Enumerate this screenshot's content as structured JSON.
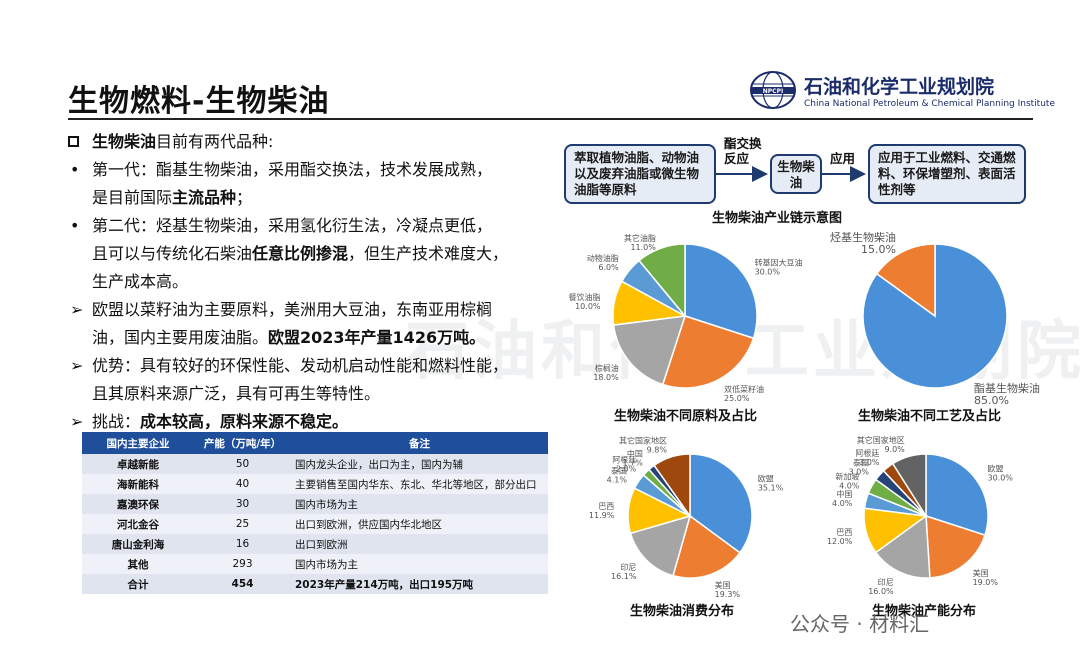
{
  "title": "生物燃料-生物柴油",
  "logo": {
    "cn": "石油和化学工业规划院",
    "en": "China National Petroleum & Chemical Planning Institute",
    "badge": "NPCPI"
  },
  "left": {
    "intro": {
      "bold": "生物柴油",
      "rest": "目前有两代品种:"
    },
    "gen1": {
      "a": "第一代：酯基生物柴油，采用酯交换法，技术发展成熟，",
      "b": "是目前国际",
      "bold": "主流品种",
      "c": "；"
    },
    "gen2": {
      "a": "第二代：烃基生物柴油，采用氢化衍生法，冷凝点更低，",
      "b": "且可以与传统化石柴油",
      "bold": "任意比例掺混",
      "c": "，但生产技术难度大，",
      "d": "生产成本高。"
    },
    "eu": {
      "a": "欧盟以菜籽油为主要原料，美洲用大豆油，东南亚用棕榈",
      "b": "油，国内主要用废油脂。",
      "bold": "欧盟2023年产量1426万吨。"
    },
    "adv": {
      "a": "优势：具有较好的环保性能、发动机启动性能和燃料性能，",
      "b": "且其原料来源广泛，具有可再生等特性。"
    },
    "chal": {
      "a": "挑战：",
      "bold": "成本较高，原料来源不稳定。"
    }
  },
  "table": {
    "headers": [
      "国内主要企业",
      "产能（万吨/年）",
      "备注"
    ],
    "rows": [
      [
        "卓越新能",
        "50",
        "国内龙头企业，出口为主，国内为辅"
      ],
      [
        "海新能科",
        "40",
        "主要销售至国内华东、东北、华北等地区，部分出口"
      ],
      [
        "嘉澳环保",
        "30",
        "国内市场为主"
      ],
      [
        "河北金谷",
        "25",
        "出口到欧洲，供应国内华北地区"
      ],
      [
        "唐山金利海",
        "16",
        "出口到欧洲"
      ],
      [
        "其他",
        "293",
        "国内市场为主"
      ],
      [
        "合计",
        "454",
        "2023年产量214万吨，出口195万吨"
      ]
    ]
  },
  "flow": {
    "box1": "萃取植物油脂、动物油以及废弃油脂或微生物油脂等原料",
    "arrow1": "酯交换反应",
    "box2": "生物柴油",
    "arrow2": "应用",
    "box3": "应用于工业燃料、交通燃料、环保增塑剂、表面活性剂等",
    "caption": "生物柴油产业链示意图"
  },
  "captions": {
    "c1": "生物柴油不同原料及占比",
    "c2": "生物柴油不同工艺及占比",
    "c3": "生物柴油消费分布",
    "c4": "生物柴油产能分布"
  },
  "chart_data": [
    {
      "type": "pie",
      "title": "生物柴油不同原料及占比",
      "labels": [
        "转基因大豆油",
        "双低菜籽油",
        "棕榈油",
        "餐饮油脂",
        "动物油脂",
        "其它油脂"
      ],
      "values": [
        30.0,
        25.0,
        18.0,
        10.0,
        6.0,
        11.0
      ],
      "display": [
        "30.0%",
        "25.0%",
        "18.0%",
        "10.0%",
        "6.0%",
        "11.0%"
      ],
      "colors": [
        "#4a90d9",
        "#ed7d31",
        "#a5a5a5",
        "#ffc000",
        "#5b9bd5",
        "#70ad47"
      ]
    },
    {
      "type": "pie",
      "title": "生物柴油不同工艺及占比",
      "labels": [
        "酯基生物柴油",
        "烃基生物柴油"
      ],
      "values": [
        85.0,
        15.0
      ],
      "display": [
        "85.0%",
        "15.0%"
      ],
      "colors": [
        "#4a90d9",
        "#ed7d31"
      ]
    },
    {
      "type": "pie",
      "title": "生物柴油消费分布",
      "labels": [
        "欧盟",
        "美国",
        "印尼",
        "巴西",
        "泰国",
        "阿根廷",
        "中国",
        "其它国家地区"
      ],
      "values": [
        35.1,
        19.3,
        16.1,
        11.9,
        4.1,
        2.0,
        1.7,
        9.8
      ],
      "display": [
        "35.1%",
        "19.3%",
        "16.1%",
        "11.9%",
        "4.1%",
        "2.0%",
        "1.7%",
        "9.8%"
      ],
      "colors": [
        "#4a90d9",
        "#ed7d31",
        "#a5a5a5",
        "#ffc000",
        "#5b9bd5",
        "#70ad47",
        "#264478",
        "#9e480e"
      ]
    },
    {
      "type": "pie",
      "title": "生物柴油产能分布",
      "labels": [
        "欧盟",
        "美国",
        "印尼",
        "巴西",
        "中国",
        "新加坡",
        "泰国",
        "阿根廷",
        "其它国家地区"
      ],
      "values": [
        30.0,
        19.0,
        16.0,
        12.0,
        4.0,
        4.0,
        3.0,
        3.0,
        9.0
      ],
      "display": [
        "30.0%",
        "19.0%",
        "16.0%",
        "12.0%",
        "4.0%",
        "4.0%",
        "3.0%",
        "3.0%",
        "9.0%"
      ],
      "colors": [
        "#4a90d9",
        "#ed7d31",
        "#a5a5a5",
        "#ffc000",
        "#5b9bd5",
        "#70ad47",
        "#264478",
        "#9e480e",
        "#636363"
      ]
    }
  ],
  "watermark": "石油和化学工业规划院",
  "footer": "公众号 · 材料汇"
}
